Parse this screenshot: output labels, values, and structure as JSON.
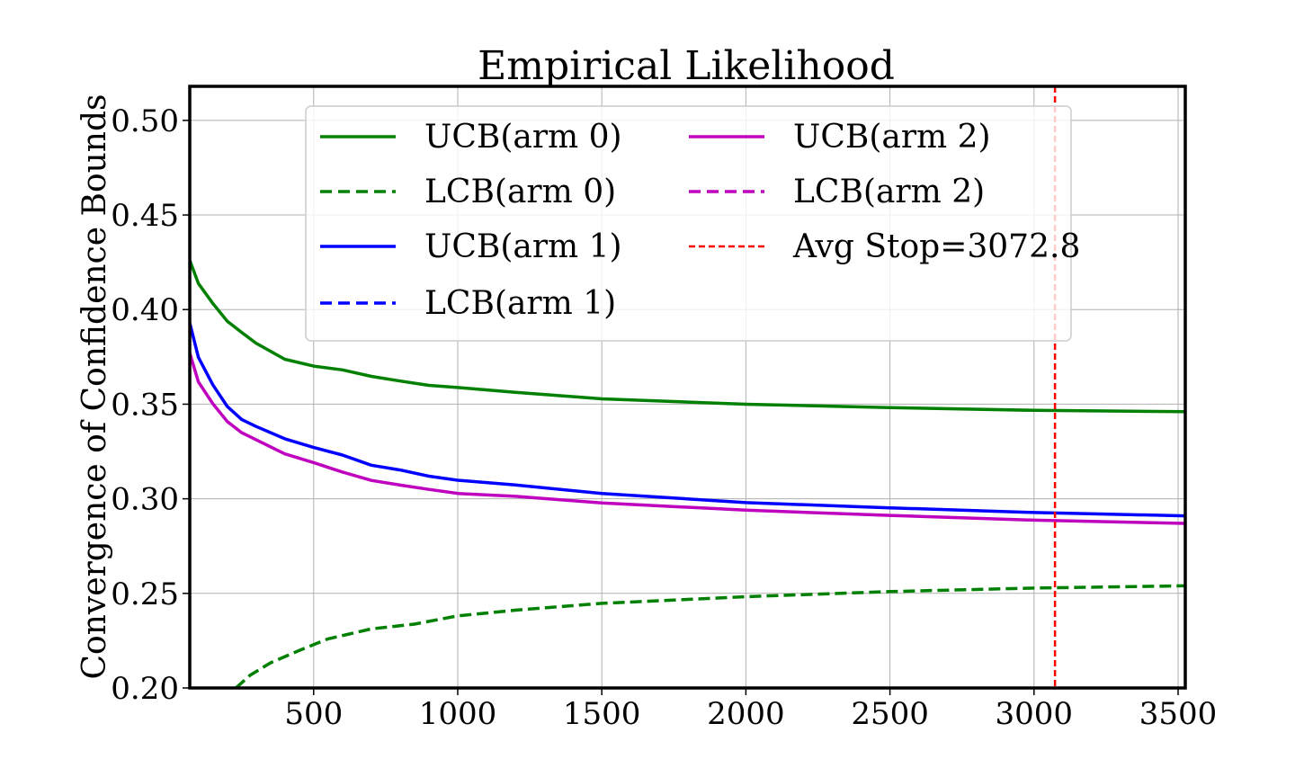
{
  "chart_data": {
    "type": "line",
    "title": "Empirical Likelihood",
    "xlabel": "",
    "ylabel": "Convergence of Confidence Bounds",
    "xlim": [
      70,
      3525
    ],
    "ylim": [
      0.2,
      0.518
    ],
    "xticks": [
      500,
      1000,
      1500,
      2000,
      2500,
      3000,
      3500
    ],
    "xtick_labels": [
      "500",
      "1000",
      "1500",
      "2000",
      "2500",
      "3000",
      "3500"
    ],
    "yticks": [
      0.2,
      0.25,
      0.3,
      0.35,
      0.4,
      0.45,
      0.5
    ],
    "ytick_labels": [
      "0.20",
      "0.25",
      "0.30",
      "0.35",
      "0.40",
      "0.45",
      "0.50"
    ],
    "grid": true,
    "legend_position": "top-center",
    "series": [
      {
        "name": "UCB(arm 0)",
        "color": "#008000",
        "style": "solid",
        "x": [
          70,
          100,
          150,
          200,
          250,
          300,
          400,
          500,
          600,
          700,
          800,
          900,
          1000,
          1200,
          1500,
          2000,
          2500,
          3000,
          3525
        ],
        "y": [
          0.426,
          0.414,
          0.403,
          0.394,
          0.388,
          0.382,
          0.374,
          0.37,
          0.368,
          0.365,
          0.362,
          0.36,
          0.359,
          0.356,
          0.353,
          0.35,
          0.348,
          0.347,
          0.346
        ]
      },
      {
        "name": "LCB(arm 0)",
        "color": "#008000",
        "style": "dashed",
        "x": [
          230,
          280,
          350,
          450,
          550,
          700,
          850,
          1000,
          1200,
          1500,
          2000,
          2500,
          3000,
          3525
        ],
        "y": [
          0.2,
          0.207,
          0.213,
          0.22,
          0.226,
          0.231,
          0.234,
          0.238,
          0.241,
          0.245,
          0.248,
          0.251,
          0.253,
          0.254
        ]
      },
      {
        "name": "UCB(arm 1)",
        "color": "#0000ff",
        "style": "solid",
        "x": [
          70,
          100,
          150,
          200,
          250,
          300,
          400,
          500,
          600,
          700,
          800,
          900,
          1000,
          1200,
          1500,
          2000,
          2500,
          3000,
          3525
        ],
        "y": [
          0.393,
          0.375,
          0.36,
          0.349,
          0.342,
          0.338,
          0.332,
          0.327,
          0.323,
          0.318,
          0.315,
          0.312,
          0.31,
          0.307,
          0.303,
          0.298,
          0.295,
          0.293,
          0.291
        ]
      },
      {
        "name": "LCB(arm 1)",
        "color": "#0000ff",
        "style": "dashed",
        "x": [],
        "y": []
      },
      {
        "name": "UCB(arm 2)",
        "color": "#bf00bf",
        "style": "solid",
        "x": [
          70,
          100,
          150,
          200,
          250,
          300,
          400,
          500,
          600,
          700,
          800,
          900,
          1000,
          1200,
          1500,
          2000,
          2500,
          3000,
          3525
        ],
        "y": [
          0.377,
          0.362,
          0.35,
          0.341,
          0.335,
          0.331,
          0.324,
          0.319,
          0.314,
          0.31,
          0.307,
          0.305,
          0.303,
          0.301,
          0.298,
          0.294,
          0.291,
          0.289,
          0.287
        ]
      },
      {
        "name": "LCB(arm 2)",
        "color": "#bf00bf",
        "style": "dashed",
        "x": [],
        "y": []
      }
    ],
    "vline": {
      "name": "Avg Stop=3072.8",
      "x": 3072.8,
      "color": "#ff0000",
      "style": "dashed"
    }
  }
}
